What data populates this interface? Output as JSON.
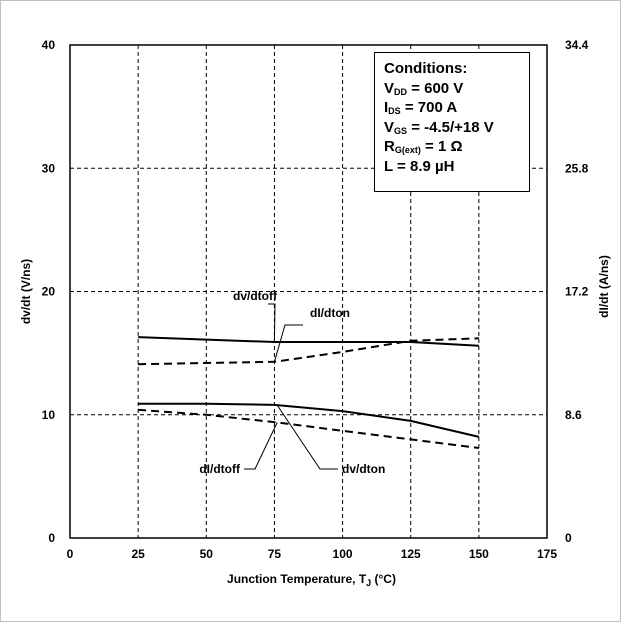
{
  "chart_data": {
    "type": "line",
    "xlabel": "Junction Temperature, T",
    "xlabel_sub": "J",
    "xlabel_suffix": " (°C)",
    "ylabel": "dv/dt (V/ns)",
    "y2label": "dI/dt (A/ns)",
    "xlim": [
      0,
      175
    ],
    "ylim": [
      0,
      40
    ],
    "y2lim": [
      0,
      34.4
    ],
    "x_ticks": [
      "0",
      "25",
      "50",
      "75",
      "100",
      "125",
      "150",
      "175"
    ],
    "y_ticks": [
      "0",
      "10",
      "20",
      "30",
      "40"
    ],
    "y2_ticks": [
      "0",
      "8.6",
      "17.2",
      "25.8",
      "34.4"
    ],
    "grid": true,
    "series": [
      {
        "name": "dv/dtoff",
        "axis": "left",
        "style": "solid",
        "x": [
          25,
          50,
          75,
          100,
          125,
          150
        ],
        "y": [
          16.3,
          16.1,
          15.9,
          15.9,
          15.9,
          15.6
        ]
      },
      {
        "name": "dI/dton",
        "axis": "left",
        "style": "dashed",
        "x": [
          25,
          50,
          75,
          100,
          125,
          150
        ],
        "y": [
          14.1,
          14.2,
          14.3,
          15.1,
          16.0,
          16.2
        ]
      },
      {
        "name": "dv/dton",
        "axis": "left",
        "style": "solid",
        "x": [
          25,
          50,
          75,
          100,
          125,
          150
        ],
        "y": [
          10.9,
          10.9,
          10.8,
          10.3,
          9.5,
          8.2
        ]
      },
      {
        "name": "dI/dtoff",
        "axis": "left",
        "style": "dashed",
        "x": [
          25,
          50,
          75,
          100,
          125,
          150
        ],
        "y": [
          10.4,
          10.0,
          9.4,
          8.7,
          8.0,
          7.3
        ]
      }
    ],
    "annotations": [
      {
        "label": "dv/dtoff",
        "target_series": 0
      },
      {
        "label": "dI/dton",
        "target_series": 1
      },
      {
        "label": "dI/dtoff",
        "target_series": 3
      },
      {
        "label": "dv/dton",
        "target_series": 2
      }
    ],
    "conditions": {
      "title": "Conditions:",
      "lines": [
        {
          "pre": "V",
          "sub": "DD",
          "post": " = 600 V"
        },
        {
          "pre": "I",
          "sub": "DS",
          "post": " = 700 A"
        },
        {
          "pre": "V",
          "sub": "GS",
          "post": " = -4.5/+18 V"
        },
        {
          "pre": "R",
          "sub": "G(ext)",
          "post": " = 1 Ω"
        },
        {
          "pre": "L = 8.9 µH",
          "sub": "",
          "post": ""
        }
      ]
    }
  }
}
